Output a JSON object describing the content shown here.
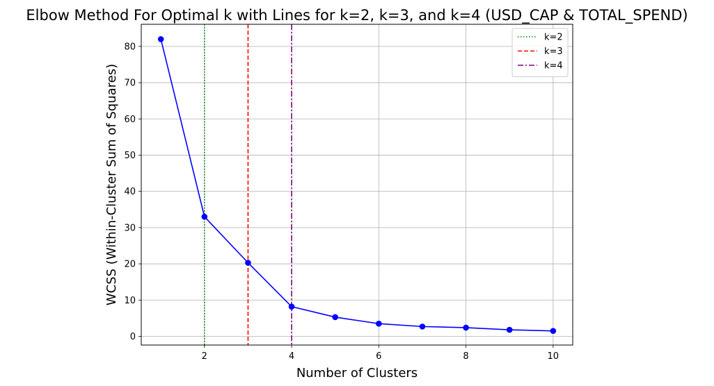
{
  "chart_data": {
    "type": "line",
    "title": "Elbow Method For Optimal k with Lines for k=2, k=3, and k=4 (USD_CAP & TOTAL_SPEND)",
    "xlabel": "Number of Clusters",
    "ylabel": "WCSS (Within-Cluster Sum of Squares)",
    "xlim": [
      0.55,
      10.45
    ],
    "ylim": [
      -2.4,
      86.1
    ],
    "xticks": [
      2,
      4,
      6,
      8,
      10
    ],
    "yticks": [
      0,
      10,
      20,
      30,
      40,
      50,
      60,
      70,
      80
    ],
    "grid": true,
    "legend_position": "top-right",
    "series": [
      {
        "x": [
          1,
          2,
          3,
          4,
          5,
          6,
          7,
          8,
          9,
          10
        ],
        "values": [
          82.0,
          33.0,
          20.3,
          8.2,
          5.3,
          3.5,
          2.7,
          2.4,
          1.8,
          1.5
        ],
        "color": "#0000ff",
        "marker": "circle"
      }
    ],
    "vlines": [
      {
        "x": 2,
        "label": "k=2",
        "color": "#008000",
        "style": "dotted"
      },
      {
        "x": 3,
        "label": "k=3",
        "color": "#ff0000",
        "style": "dashed"
      },
      {
        "x": 4,
        "label": "k=4",
        "color": "#800080",
        "style": "dashdot"
      }
    ]
  }
}
